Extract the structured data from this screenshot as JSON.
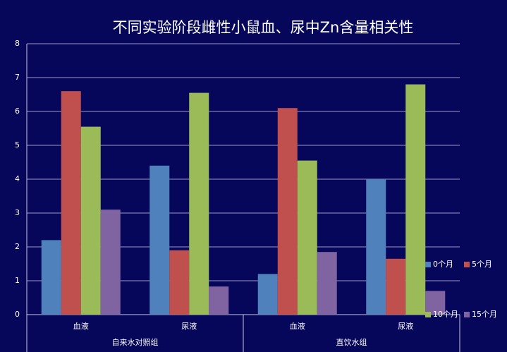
{
  "chart_data": {
    "type": "bar",
    "title": "不同实验阶段雌性小鼠血、尿中Zn含量相关性",
    "categories": [
      "血液",
      "尿液",
      "血液",
      "尿液"
    ],
    "groups": [
      "自来水对照组",
      "直饮水组"
    ],
    "series": [
      {
        "name": "0个月",
        "color": "#4f81bd",
        "values": [
          2.2,
          4.4,
          1.2,
          4.0
        ]
      },
      {
        "name": "5个月",
        "color": "#c0504d",
        "values": [
          6.6,
          1.9,
          6.1,
          1.65
        ]
      },
      {
        "name": "10个月",
        "color": "#9bbb59",
        "values": [
          5.55,
          6.55,
          4.55,
          6.8
        ]
      },
      {
        "name": "15个月",
        "color": "#8064a2",
        "values": [
          3.1,
          0.83,
          1.85,
          0.7
        ]
      }
    ],
    "ylim": [
      0,
      8
    ],
    "yticks": [
      0,
      1,
      2,
      3,
      4,
      5,
      6,
      7,
      8
    ],
    "grid": true
  }
}
